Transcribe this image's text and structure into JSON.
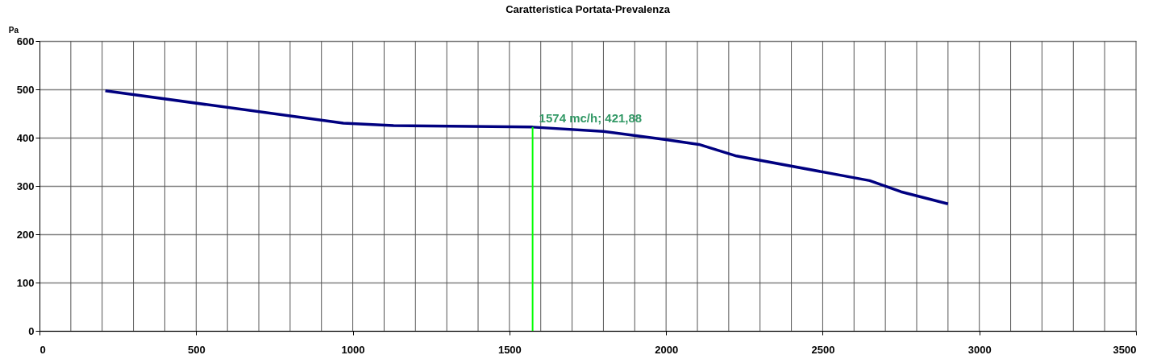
{
  "chart_data": {
    "type": "line",
    "title": "Caratteristica Portata-Prevalenza",
    "ylabel": "Pa",
    "x": [
      210,
      970,
      1130,
      1574,
      1800,
      2000,
      2105,
      2225,
      2650,
      2750,
      2900
    ],
    "series": [
      {
        "color": "#000080",
        "values": [
          497,
          430,
          425,
          421.88,
          413,
          396,
          386,
          362,
          311,
          288,
          263
        ]
      }
    ],
    "xlim": [
      0,
      3500
    ],
    "xticks": [
      0,
      500,
      1000,
      1500,
      2000,
      2500,
      3000,
      3500
    ],
    "ylim": [
      0,
      600
    ],
    "yticks": [
      0,
      100,
      200,
      300,
      400,
      500,
      600
    ],
    "ref_lines": [
      {
        "axis": "x",
        "value": 1574,
        "color": "#00ff00"
      }
    ],
    "annotations": [
      {
        "text": "1574 mc/h; 421,88",
        "x": 1574,
        "y": 421.88
      }
    ],
    "grid": true,
    "marker": "none",
    "line_style": "solid"
  }
}
